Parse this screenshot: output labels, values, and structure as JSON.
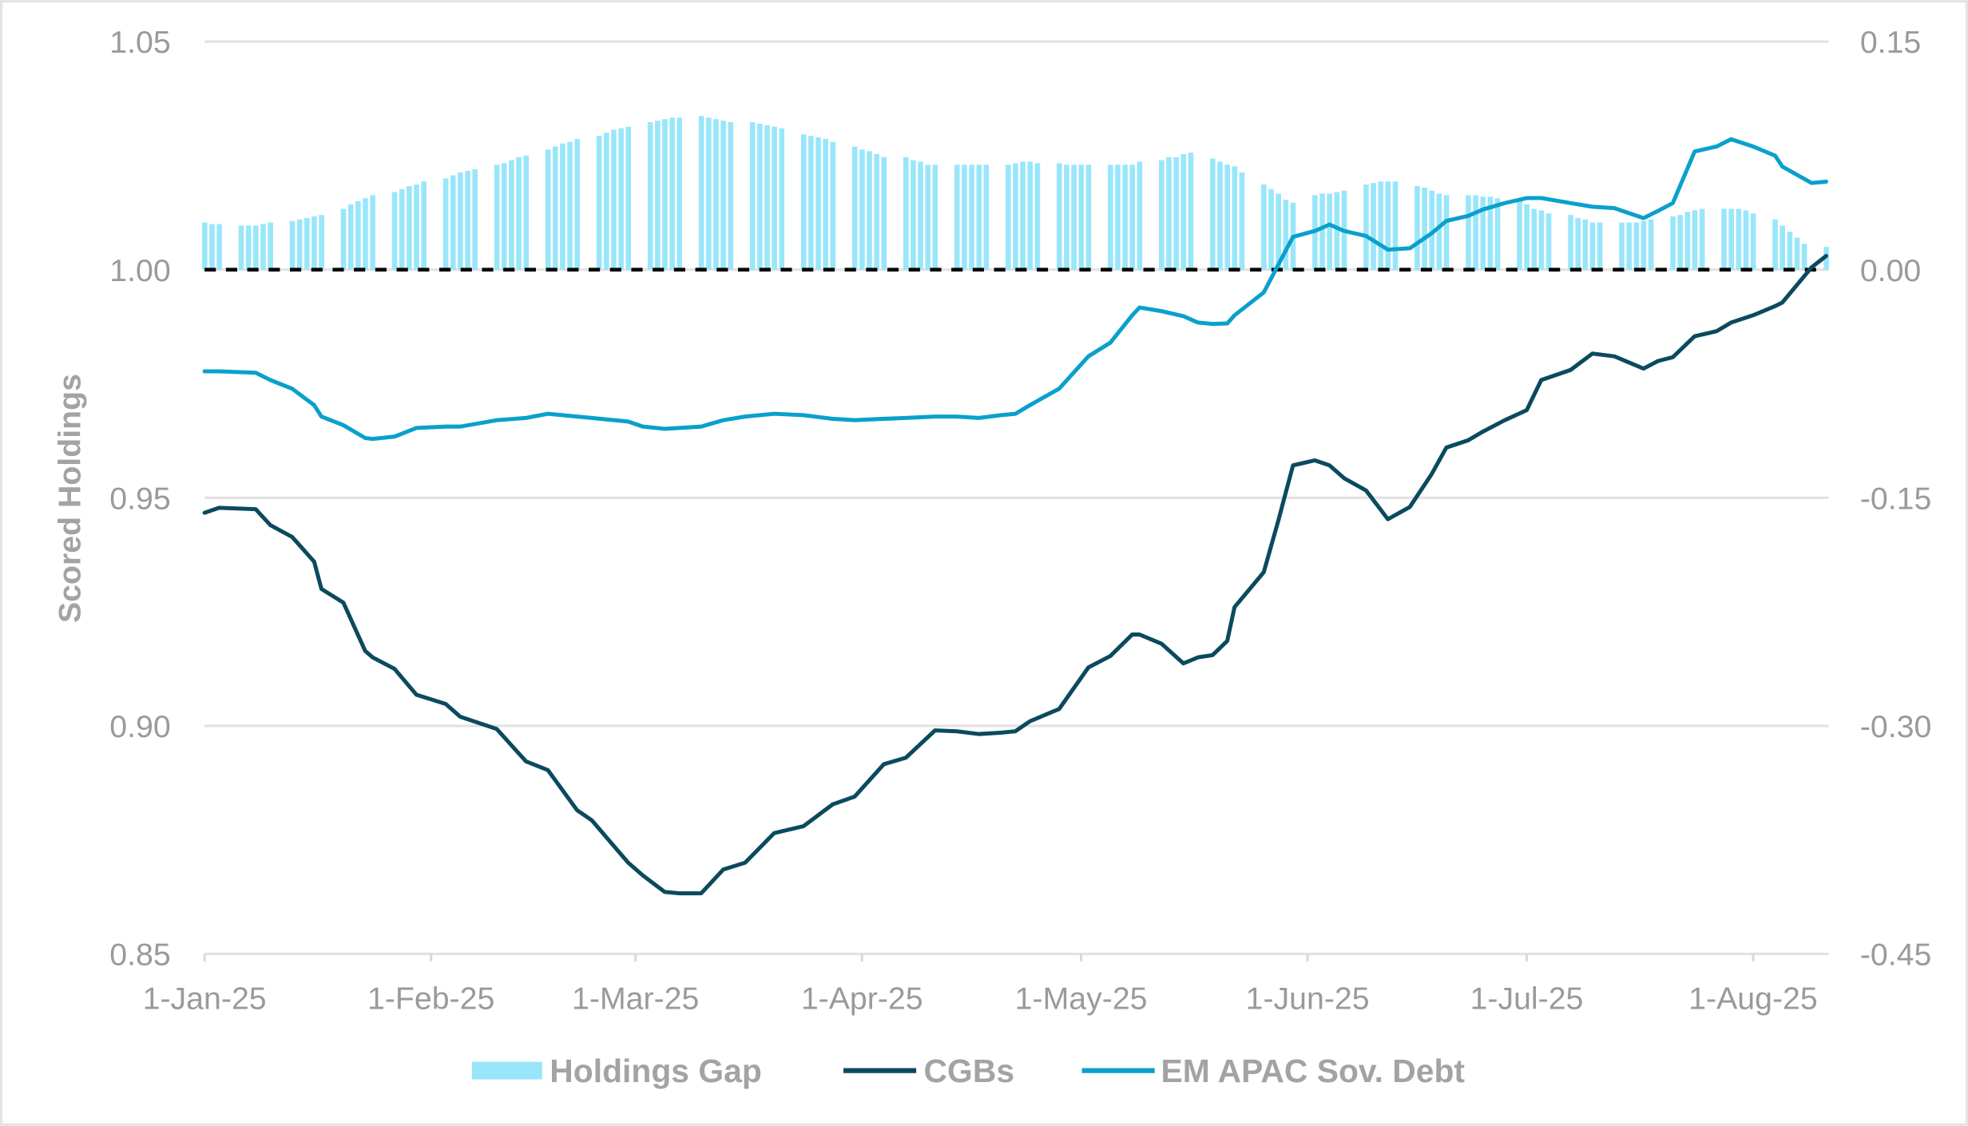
{
  "chart_data": {
    "type": "bar+line",
    "title": "",
    "ylabel_left": "Scored Holdings",
    "ylabel_right": "",
    "ylim_left": [
      0.85,
      1.05
    ],
    "yticks_left": [
      "0.85",
      "0.90",
      "0.95",
      "1.00",
      "1.05"
    ],
    "ylim_right": [
      -0.45,
      0.15
    ],
    "yticks_right": [
      "-0.45",
      "-0.30",
      "-0.15",
      "0.00",
      "0.15"
    ],
    "xlim": [
      "2025-01-01",
      "2025-08-11"
    ],
    "xticks": [
      {
        "date": "2025-01-01",
        "label": "1-Jan-25"
      },
      {
        "date": "2025-02-01",
        "label": "1-Feb-25"
      },
      {
        "date": "2025-03-01",
        "label": "1-Mar-25"
      },
      {
        "date": "2025-04-01",
        "label": "1-Apr-25"
      },
      {
        "date": "2025-05-01",
        "label": "1-May-25"
      },
      {
        "date": "2025-06-01",
        "label": "1-Jun-25"
      },
      {
        "date": "2025-07-01",
        "label": "1-Jul-25"
      },
      {
        "date": "2025-08-01",
        "label": "1-Aug-25"
      }
    ],
    "grid": "horizontal",
    "reference_line": {
      "value_right": 0.0,
      "style": "dashed",
      "color": "#000000"
    },
    "legend": {
      "placement": "bottom"
    },
    "bars": {
      "name": "Holdings Gap",
      "axis": "right",
      "color": "#99e6fb",
      "weekly_business_day_values": [
        {
          "week_of": "2025-01-01",
          "values": [
            0.031,
            0.03,
            0.03
          ]
        },
        {
          "week_of": "2025-01-06",
          "values": [
            0.029,
            0.029,
            0.029,
            0.03,
            0.031
          ]
        },
        {
          "week_of": "2025-01-13",
          "values": [
            0.032,
            0.033,
            0.034,
            0.035,
            0.036
          ]
        },
        {
          "week_of": "2025-01-20",
          "values": [
            0.04,
            0.043,
            0.045,
            0.047,
            0.049
          ]
        },
        {
          "week_of": "2025-01-27",
          "values": [
            0.051,
            0.053,
            0.055,
            0.056,
            0.058
          ]
        },
        {
          "week_of": "2025-02-03",
          "values": [
            0.06,
            0.062,
            0.064,
            0.065,
            0.066
          ]
        },
        {
          "week_of": "2025-02-10",
          "values": [
            0.069,
            0.07,
            0.072,
            0.074,
            0.075
          ]
        },
        {
          "week_of": "2025-02-17",
          "values": [
            0.079,
            0.081,
            0.083,
            0.084,
            0.086
          ]
        },
        {
          "week_of": "2025-02-24",
          "values": [
            0.088,
            0.09,
            0.092,
            0.093,
            0.094
          ]
        },
        {
          "week_of": "2025-03-03",
          "values": [
            0.097,
            0.098,
            0.099,
            0.1,
            0.1
          ]
        },
        {
          "week_of": "2025-03-10",
          "values": [
            0.101,
            0.1,
            0.099,
            0.098,
            0.097
          ]
        },
        {
          "week_of": "2025-03-17",
          "values": [
            0.097,
            0.096,
            0.095,
            0.094,
            0.093
          ]
        },
        {
          "week_of": "2025-03-24",
          "values": [
            0.089,
            0.088,
            0.087,
            0.086,
            0.084
          ]
        },
        {
          "week_of": "2025-03-31",
          "values": [
            0.081,
            0.079,
            0.078,
            0.076,
            0.074
          ]
        },
        {
          "week_of": "2025-04-07",
          "values": [
            0.074,
            0.072,
            0.071,
            0.069,
            0.069
          ]
        },
        {
          "week_of": "2025-04-14",
          "values": [
            0.069,
            0.069,
            0.069,
            0.069,
            0.069
          ]
        },
        {
          "week_of": "2025-04-21",
          "values": [
            0.069,
            0.07,
            0.071,
            0.071,
            0.07
          ]
        },
        {
          "week_of": "2025-04-28",
          "values": [
            0.07,
            0.069,
            0.069,
            0.069,
            0.069
          ]
        },
        {
          "week_of": "2025-05-05",
          "values": [
            0.069,
            0.069,
            0.069,
            0.069,
            0.071
          ]
        },
        {
          "week_of": "2025-05-12",
          "values": [
            0.072,
            0.074,
            0.074,
            0.076,
            0.077
          ]
        },
        {
          "week_of": "2025-05-19",
          "values": [
            0.073,
            0.071,
            0.069,
            0.068,
            0.064
          ]
        },
        {
          "week_of": "2025-05-26",
          "values": [
            0.056,
            0.053,
            0.05,
            0.046,
            0.044
          ]
        },
        {
          "week_of": "2025-06-02",
          "values": [
            0.049,
            0.05,
            0.05,
            0.051,
            0.052
          ]
        },
        {
          "week_of": "2025-06-09",
          "values": [
            0.056,
            0.057,
            0.058,
            0.058,
            0.058
          ]
        },
        {
          "week_of": "2025-06-16",
          "values": [
            0.055,
            0.054,
            0.052,
            0.05,
            0.049
          ]
        },
        {
          "week_of": "2025-06-23",
          "values": [
            0.049,
            0.049,
            0.048,
            0.048,
            0.047
          ]
        },
        {
          "week_of": "2025-06-30",
          "values": [
            0.046,
            0.043,
            0.04,
            0.039,
            0.037
          ]
        },
        {
          "week_of": "2025-07-07",
          "values": [
            0.036,
            0.034,
            0.033,
            0.031,
            0.031
          ]
        },
        {
          "week_of": "2025-07-14",
          "values": [
            0.031,
            0.031,
            0.031,
            0.032,
            0.033
          ]
        },
        {
          "week_of": "2025-07-21",
          "values": [
            0.035,
            0.036,
            0.038,
            0.039,
            0.04
          ]
        },
        {
          "week_of": "2025-07-28",
          "values": [
            0.04,
            0.04,
            0.04,
            0.039,
            0.037
          ]
        },
        {
          "week_of": "2025-08-04",
          "values": [
            0.033,
            0.029,
            0.025,
            0.021,
            0.017
          ]
        },
        {
          "week_of": "2025-08-11",
          "values": [
            0.015
          ]
        }
      ]
    },
    "x": [
      "2025-01-01",
      "2025-01-03",
      "2025-01-08",
      "2025-01-10",
      "2025-01-13",
      "2025-01-16",
      "2025-01-17",
      "2025-01-20",
      "2025-01-23",
      "2025-01-24",
      "2025-01-27",
      "2025-01-30",
      "2025-02-03",
      "2025-02-05",
      "2025-02-10",
      "2025-02-14",
      "2025-02-17",
      "2025-02-21",
      "2025-02-23",
      "2025-02-28",
      "2025-03-02",
      "2025-03-05",
      "2025-03-07",
      "2025-03-10",
      "2025-03-13",
      "2025-03-16",
      "2025-03-20",
      "2025-03-24",
      "2025-03-28",
      "2025-03-31",
      "2025-04-04",
      "2025-04-07",
      "2025-04-11",
      "2025-04-14",
      "2025-04-17",
      "2025-04-20",
      "2025-04-22",
      "2025-04-24",
      "2025-04-28",
      "2025-05-02",
      "2025-05-05",
      "2025-05-08",
      "2025-05-09",
      "2025-05-12",
      "2025-05-15",
      "2025-05-17",
      "2025-05-19",
      "2025-05-21",
      "2025-05-22",
      "2025-05-26",
      "2025-05-28",
      "2025-05-30",
      "2025-06-02",
      "2025-06-04",
      "2025-06-06",
      "2025-06-09",
      "2025-06-12",
      "2025-06-15",
      "2025-06-18",
      "2025-06-20",
      "2025-06-23",
      "2025-06-25",
      "2025-06-28",
      "2025-07-01",
      "2025-07-03",
      "2025-07-07",
      "2025-07-10",
      "2025-07-13",
      "2025-07-17",
      "2025-07-19",
      "2025-07-21",
      "2025-07-24",
      "2025-07-27",
      "2025-07-29",
      "2025-08-01",
      "2025-08-04",
      "2025-08-05",
      "2025-08-09",
      "2025-08-11"
    ],
    "series": [
      {
        "name": "CGBs",
        "axis": "left",
        "color": "#0b4a5e",
        "values": [
          0.9467,
          0.9478,
          0.9475,
          0.944,
          0.9414,
          0.936,
          0.93,
          0.927,
          0.9164,
          0.915,
          0.9125,
          0.9068,
          0.9048,
          0.902,
          0.8993,
          0.8922,
          0.8903,
          0.8815,
          0.8793,
          0.87,
          0.8672,
          0.8636,
          0.8633,
          0.8633,
          0.8685,
          0.87,
          0.8765,
          0.878,
          0.8828,
          0.8845,
          0.8916,
          0.893,
          0.899,
          0.8988,
          0.8982,
          0.8985,
          0.8988,
          0.901,
          0.9037,
          0.9128,
          0.9153,
          0.92,
          0.92,
          0.918,
          0.9137,
          0.915,
          0.9155,
          0.9186,
          0.926,
          0.9337,
          0.945,
          0.9571,
          0.9582,
          0.9571,
          0.9543,
          0.9516,
          0.9453,
          0.948,
          0.9552,
          0.961,
          0.9626,
          0.9645,
          0.967,
          0.9692,
          0.9758,
          0.978,
          0.9816,
          0.981,
          0.9783,
          0.98,
          0.9808,
          0.9854,
          0.9865,
          0.9884,
          0.99,
          0.992,
          0.9928,
          1.0005,
          1.003
        ]
      },
      {
        "name": "EM APAC Sov. Debt",
        "axis": "left",
        "color": "#0aa0cc",
        "values": [
          0.9777,
          0.9777,
          0.9774,
          0.9758,
          0.9739,
          0.9703,
          0.9678,
          0.9659,
          0.9631,
          0.9629,
          0.9634,
          0.9653,
          0.9656,
          0.9656,
          0.967,
          0.9675,
          0.9684,
          0.9678,
          0.9675,
          0.9667,
          0.9656,
          0.9651,
          0.9653,
          0.9656,
          0.967,
          0.9678,
          0.9684,
          0.9681,
          0.9673,
          0.967,
          0.9673,
          0.9675,
          0.9678,
          0.9678,
          0.9675,
          0.9681,
          0.9684,
          0.9703,
          0.9739,
          0.981,
          0.984,
          0.99,
          0.9917,
          0.9909,
          0.9898,
          0.9884,
          0.9881,
          0.9882,
          0.99,
          0.995,
          1.0011,
          1.0072,
          1.0085,
          1.0099,
          1.0085,
          1.0074,
          1.0044,
          1.0047,
          1.008,
          1.0107,
          1.0118,
          1.0132,
          1.0146,
          1.0157,
          1.0157,
          1.0146,
          1.0138,
          1.0135,
          1.0113,
          1.0129,
          1.0146,
          1.0259,
          1.027,
          1.0286,
          1.027,
          1.025,
          1.0226,
          1.019,
          1.0193
        ]
      }
    ]
  }
}
